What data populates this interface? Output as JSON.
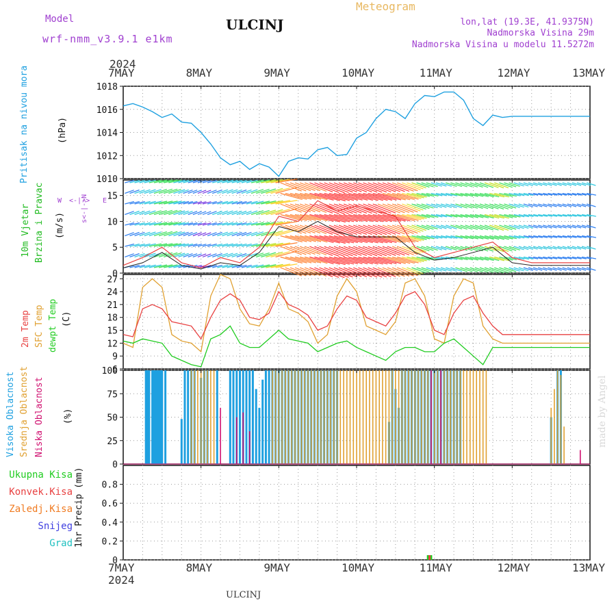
{
  "header": {
    "model_label": "Model",
    "model_name": "wrf-nmm_v3.9.1 e1km",
    "title": "ULCINJ",
    "meteogram": "Meteogram",
    "coords": "lon,lat (19.3E, 41.9375N)",
    "altitude": "Nadmorska Visina 29m",
    "model_altitude": "Nadmorska Visina u modelu 11.5272m"
  },
  "footer": {
    "station": "ULCINJ",
    "credit": "made by Angel"
  },
  "time_axis": {
    "year": "2024",
    "days": [
      "7MAY",
      "8MAY",
      "9MAY",
      "10MAY",
      "11MAY",
      "12MAY",
      "13MAY"
    ]
  },
  "colors": {
    "pressure": "#1ea0e0",
    "temp2m": "#e84040",
    "sfc": "#e0a030",
    "dewpt": "#20cc20",
    "high_cloud": "#1ea0e0",
    "mid_cloud": "#e0a030",
    "low_cloud": "#d01070"
  },
  "panels": {
    "pressure": {
      "label": "Pritisak na nivou mora",
      "unit": "(hPa)"
    },
    "wind": {
      "label1": "10m Vjetar",
      "label2": "Brzina i Pravac",
      "unit": "(m/s)",
      "compass": [
        "W",
        "<-|->",
        "E"
      ],
      "compass_v": "s<-|->N"
    },
    "temp": {
      "label_2m": "2m Temp",
      "label_sfc": "SFC Temp",
      "label_dew": "dewpt Temp",
      "unit": "(C)"
    },
    "cloud": {
      "label_high": "Visoka Oblacnost",
      "label_mid": "Srednja Oblacnost",
      "label_low": "Niska Oblacnost",
      "unit": "(%)"
    },
    "precip": {
      "ylabel": "1hr Precip (mm)",
      "legend": [
        {
          "label": "Ukupna Kisa",
          "color": "#20cc20"
        },
        {
          "label": "Konvek.Kisa",
          "color": "#e84040"
        },
        {
          "label": "Zaledj.Kisa",
          "color": "#f07a20"
        },
        {
          "label": "Snijeg",
          "color": "#4040e0"
        },
        {
          "label": "Grad",
          "color": "#20c0c0"
        }
      ]
    }
  },
  "chart_data": [
    {
      "type": "line",
      "title": "Pritisak na nivou mora",
      "ylabel": "(hPa)",
      "ylim": [
        1010,
        1018
      ],
      "yticks": [
        1010,
        1012,
        1014,
        1016,
        1018
      ],
      "x": [
        0,
        3,
        6,
        9,
        12,
        15,
        18,
        21,
        24,
        27,
        30,
        33,
        36,
        39,
        42,
        45,
        48,
        51,
        54,
        57,
        60,
        63,
        66,
        69,
        72,
        75,
        78,
        81,
        84,
        87,
        90,
        93,
        96,
        99,
        102,
        105,
        108,
        111,
        114,
        117,
        120,
        123,
        126,
        129,
        132,
        135,
        138,
        141,
        144
      ],
      "series": [
        {
          "values": [
            1016.3,
            1016.5,
            1016.2,
            1015.8,
            1015.3,
            1015.6,
            1014.9,
            1014.8,
            1014.0,
            1013.0,
            1011.8,
            1011.2,
            1011.5,
            1010.8,
            1011.3,
            1011.0,
            1010.2,
            1011.5,
            1011.8,
            1011.7,
            1012.5,
            1012.7,
            1012.0,
            1012.1,
            1013.5,
            1014.0,
            1015.2,
            1016.0,
            1015.8,
            1015.2,
            1016.5,
            1017.2,
            1017.1,
            1017.5,
            1017.5,
            1016.8,
            1015.2,
            1014.6,
            1015.5,
            1015.3,
            1015.4,
            1015.4,
            1015.4,
            1015.4,
            1015.4,
            1015.4,
            1015.4,
            1015.4,
            1015.4
          ]
        }
      ]
    },
    {
      "type": "line",
      "title": "10m Vjetar",
      "ylabel": "(m/s)",
      "ylim": [
        0,
        18
      ],
      "yticks": [
        0,
        5,
        10,
        15
      ],
      "x": [
        0,
        6,
        12,
        18,
        24,
        30,
        36,
        42,
        48,
        54,
        60,
        66,
        72,
        78,
        84,
        90,
        96,
        102,
        108,
        114,
        120,
        126,
        132,
        138,
        144
      ],
      "series": [
        {
          "values": [
            1.5,
            3,
            5,
            2,
            1,
            3,
            2,
            5,
            11,
            10,
            14,
            12,
            13,
            12,
            11,
            5,
            3,
            4,
            5,
            6,
            3,
            2,
            2,
            2,
            2
          ]
        },
        {
          "values": [
            1,
            2,
            4,
            1.5,
            0.8,
            2,
            1.5,
            4,
            9,
            8,
            10,
            8,
            7,
            7,
            7,
            4,
            2.5,
            3,
            4,
            5,
            2,
            1.5,
            1.5,
            1.5,
            1.5
          ]
        }
      ]
    },
    {
      "type": "line",
      "title": "2m Temp / SFC Temp / dewpt Temp",
      "ylabel": "(C)",
      "ylim": [
        6,
        28
      ],
      "yticks": [
        6,
        9,
        12,
        15,
        18,
        21,
        24,
        27
      ],
      "x": [
        0,
        3,
        6,
        9,
        12,
        15,
        18,
        21,
        24,
        27,
        30,
        33,
        36,
        39,
        42,
        45,
        48,
        51,
        54,
        57,
        60,
        63,
        66,
        69,
        72,
        75,
        78,
        81,
        84,
        87,
        90,
        93,
        96,
        99,
        102,
        105,
        108,
        111,
        114,
        117,
        120,
        123,
        126,
        129,
        132,
        135,
        138,
        141,
        144
      ],
      "series": [
        {
          "name": "2m Temp",
          "values": [
            14,
            13.5,
            20,
            21,
            20,
            17,
            16.5,
            16,
            13,
            18,
            22,
            23.5,
            22,
            18,
            17.5,
            19,
            24,
            21,
            20,
            18.5,
            15,
            16,
            20,
            23,
            22,
            18,
            17,
            16,
            19,
            23,
            24,
            21,
            15,
            14,
            19,
            22,
            23,
            19,
            16,
            14,
            14,
            14,
            14,
            14,
            14,
            14,
            14,
            14,
            14
          ]
        },
        {
          "name": "SFC Temp",
          "values": [
            12,
            11,
            25,
            27,
            25,
            14,
            12.5,
            12,
            10,
            23,
            28,
            27,
            20,
            16.5,
            16,
            20,
            26,
            20,
            19,
            17,
            12,
            14,
            23,
            27,
            24,
            16,
            15,
            14,
            17,
            26,
            27,
            23,
            13,
            12,
            23,
            27,
            26,
            16,
            13,
            12,
            12,
            12,
            12,
            12,
            12,
            12,
            12,
            12,
            12
          ]
        },
        {
          "name": "dewpt Temp",
          "values": [
            12.5,
            12,
            13,
            12.5,
            12,
            9,
            8,
            7,
            6.5,
            13,
            14,
            16,
            12,
            11,
            11,
            13,
            15,
            13,
            12.5,
            12,
            10,
            11,
            12,
            12.5,
            11,
            10,
            9,
            8,
            10,
            11,
            11,
            10,
            10,
            12,
            13,
            11,
            9,
            7,
            11,
            11,
            11,
            11,
            11,
            11,
            11,
            11,
            11,
            11,
            11
          ]
        }
      ]
    },
    {
      "type": "bar",
      "title": "Oblacnost",
      "ylabel": "(%)",
      "ylim": [
        0,
        100
      ],
      "yticks": [
        0,
        25,
        50,
        75,
        100
      ],
      "series": [
        {
          "name": "Visoka Oblacnost",
          "times": [
            7,
            7.5,
            8,
            9,
            9.5,
            10,
            10.5,
            11,
            11.5,
            12,
            13,
            18,
            19,
            20,
            21,
            22,
            24,
            25,
            26,
            29,
            33,
            34,
            35,
            36,
            37,
            38,
            39,
            40,
            41,
            42,
            43,
            44,
            45,
            46,
            47,
            48,
            49,
            50,
            51,
            52,
            53,
            54,
            55,
            56,
            57,
            58,
            59,
            60,
            61,
            62,
            63,
            64,
            65,
            66,
            82,
            83,
            84,
            85,
            86,
            87,
            88,
            89,
            90,
            91,
            92,
            93,
            94,
            95,
            96,
            97,
            98,
            99,
            100,
            101,
            102,
            103,
            104,
            132,
            133,
            134,
            135
          ],
          "values": [
            100,
            100,
            100,
            100,
            100,
            100,
            100,
            100,
            100,
            100,
            100,
            48,
            100,
            100,
            100,
            100,
            92,
            100,
            100,
            100,
            100,
            100,
            100,
            100,
            100,
            100,
            100,
            100,
            80,
            60,
            90,
            100,
            100,
            100,
            100,
            100,
            100,
            100,
            100,
            100,
            100,
            100,
            100,
            100,
            100,
            100,
            100,
            100,
            100,
            100,
            100,
            100,
            100,
            100,
            45,
            100,
            80,
            60,
            100,
            100,
            100,
            100,
            100,
            100,
            100,
            100,
            100,
            100,
            100,
            100,
            100,
            100,
            100,
            100,
            100,
            100,
            100,
            50,
            8,
            100,
            100
          ]
        },
        {
          "name": "Srednja Oblacnost",
          "times": [
            21,
            22,
            23,
            24,
            25,
            26,
            27,
            28,
            46,
            47,
            48,
            49,
            50,
            51,
            52,
            53,
            54,
            55,
            56,
            57,
            58,
            59,
            60,
            61,
            62,
            63,
            64,
            65,
            66,
            67,
            68,
            69,
            70,
            71,
            72,
            73,
            74,
            75,
            76,
            77,
            78,
            79,
            80,
            81,
            82,
            83,
            84,
            85,
            86,
            87,
            88,
            89,
            90,
            91,
            92,
            93,
            94,
            95,
            96,
            97,
            98,
            99,
            100,
            101,
            102,
            103,
            104,
            105,
            106,
            107,
            108,
            109,
            110,
            111,
            112,
            132,
            133,
            134,
            135,
            136
          ],
          "values": [
            100,
            100,
            100,
            100,
            100,
            100,
            100,
            100,
            100,
            100,
            100,
            100,
            100,
            100,
            100,
            100,
            100,
            100,
            100,
            100,
            100,
            100,
            100,
            100,
            100,
            100,
            100,
            100,
            100,
            100,
            100,
            100,
            100,
            100,
            100,
            100,
            100,
            100,
            100,
            100,
            100,
            100,
            100,
            100,
            100,
            100,
            100,
            100,
            100,
            100,
            100,
            100,
            100,
            100,
            100,
            100,
            100,
            100,
            100,
            100,
            100,
            100,
            100,
            100,
            100,
            100,
            100,
            100,
            100,
            100,
            100,
            100,
            100,
            100,
            100,
            60,
            80,
            100,
            95,
            40
          ]
        },
        {
          "name": "Niska Oblacnost",
          "times": [
            30,
            35,
            37,
            39,
            95,
            98,
            120,
            141
          ],
          "values": [
            60,
            50,
            55,
            35,
            100,
            100,
            5,
            15
          ]
        }
      ]
    },
    {
      "type": "bar",
      "title": "1hr Precip",
      "ylabel": "1hr Precip (mm)",
      "ylim": [
        0,
        1.0
      ],
      "yticks": [
        0,
        0.2,
        0.4,
        0.6,
        0.8
      ],
      "series": [
        {
          "name": "Ukupna Kisa",
          "times": [
            94,
            95
          ],
          "values": [
            0.05,
            0.05
          ]
        },
        {
          "name": "Konvek.Kisa",
          "times": [
            94.5
          ],
          "values": [
            0.05
          ]
        }
      ]
    }
  ]
}
